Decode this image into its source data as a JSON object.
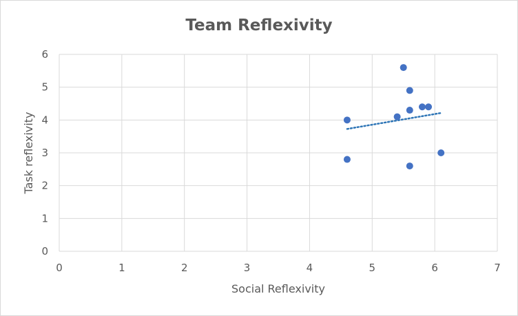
{
  "chart_data": {
    "type": "scatter",
    "title": "Team Reflexivity",
    "xlabel": "Social Reflexivity",
    "ylabel": "Task reflexivity",
    "xlim": [
      0,
      7
    ],
    "ylim": [
      0,
      6
    ],
    "xticks": [
      "0",
      "1",
      "2",
      "3",
      "4",
      "5",
      "6",
      "7"
    ],
    "yticks": [
      "0",
      "1",
      "2",
      "3",
      "4",
      "5",
      "6"
    ],
    "grid": true,
    "legend": "none",
    "marker_color": "#4472c4",
    "trendline": {
      "type": "linear",
      "style": "dotted",
      "color": "#2e75b6",
      "x_range": [
        4.6,
        6.1
      ]
    },
    "points": [
      {
        "x": 4.6,
        "y": 4.0
      },
      {
        "x": 4.6,
        "y": 2.8
      },
      {
        "x": 5.4,
        "y": 4.1
      },
      {
        "x": 5.5,
        "y": 5.6
      },
      {
        "x": 5.6,
        "y": 4.9
      },
      {
        "x": 5.6,
        "y": 4.3
      },
      {
        "x": 5.6,
        "y": 2.6
      },
      {
        "x": 5.8,
        "y": 4.4
      },
      {
        "x": 5.9,
        "y": 4.4
      },
      {
        "x": 6.1,
        "y": 3.0
      }
    ]
  }
}
